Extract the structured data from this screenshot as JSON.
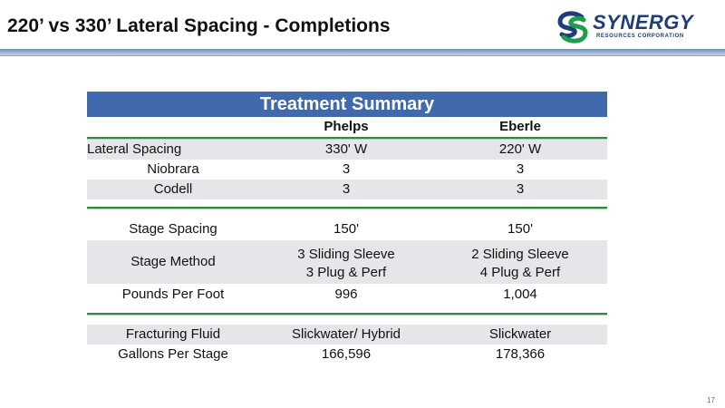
{
  "slide": {
    "title": "220’ vs 330’ Lateral Spacing - Completions",
    "page_number": "17"
  },
  "logo": {
    "word": "SYNERGY",
    "sub": "RESOURCES CORPORATION",
    "colors": {
      "blue": "#1f3d7a",
      "green": "#1e9e4a"
    }
  },
  "table": {
    "title": "Treatment Summary",
    "columns": [
      "",
      "Phelps",
      "Eberle"
    ],
    "groups": [
      {
        "rows": [
          {
            "label": "Lateral Spacing",
            "phelps": [
              "330' W"
            ],
            "eberle": [
              "220' W"
            ]
          },
          {
            "label": "Niobrara",
            "phelps": [
              "3"
            ],
            "eberle": [
              "3"
            ]
          },
          {
            "label": "Codell",
            "phelps": [
              "3"
            ],
            "eberle": [
              "3"
            ]
          }
        ]
      },
      {
        "rows": [
          {
            "label": "Stage Spacing",
            "phelps": [
              "150'"
            ],
            "eberle": [
              "150'"
            ]
          },
          {
            "label": "Stage Method",
            "phelps": [
              "3 Sliding Sleeve",
              "3 Plug & Perf"
            ],
            "eberle": [
              "2 Sliding Sleeve",
              "4 Plug & Perf"
            ]
          },
          {
            "label": "Pounds Per Foot",
            "phelps": [
              "996"
            ],
            "eberle": [
              "1,004"
            ]
          }
        ]
      },
      {
        "rows": [
          {
            "label": "Fracturing Fluid",
            "phelps": [
              "Slickwater/ Hybrid"
            ],
            "eberle": [
              "Slickwater"
            ]
          },
          {
            "label": "Gallons Per Stage",
            "phelps": [
              "166,596"
            ],
            "eberle": [
              "178,366"
            ]
          }
        ]
      }
    ],
    "colors": {
      "header": "#4169ae",
      "shade": "#e4e6ea",
      "rule": "#2f8a3c"
    }
  }
}
